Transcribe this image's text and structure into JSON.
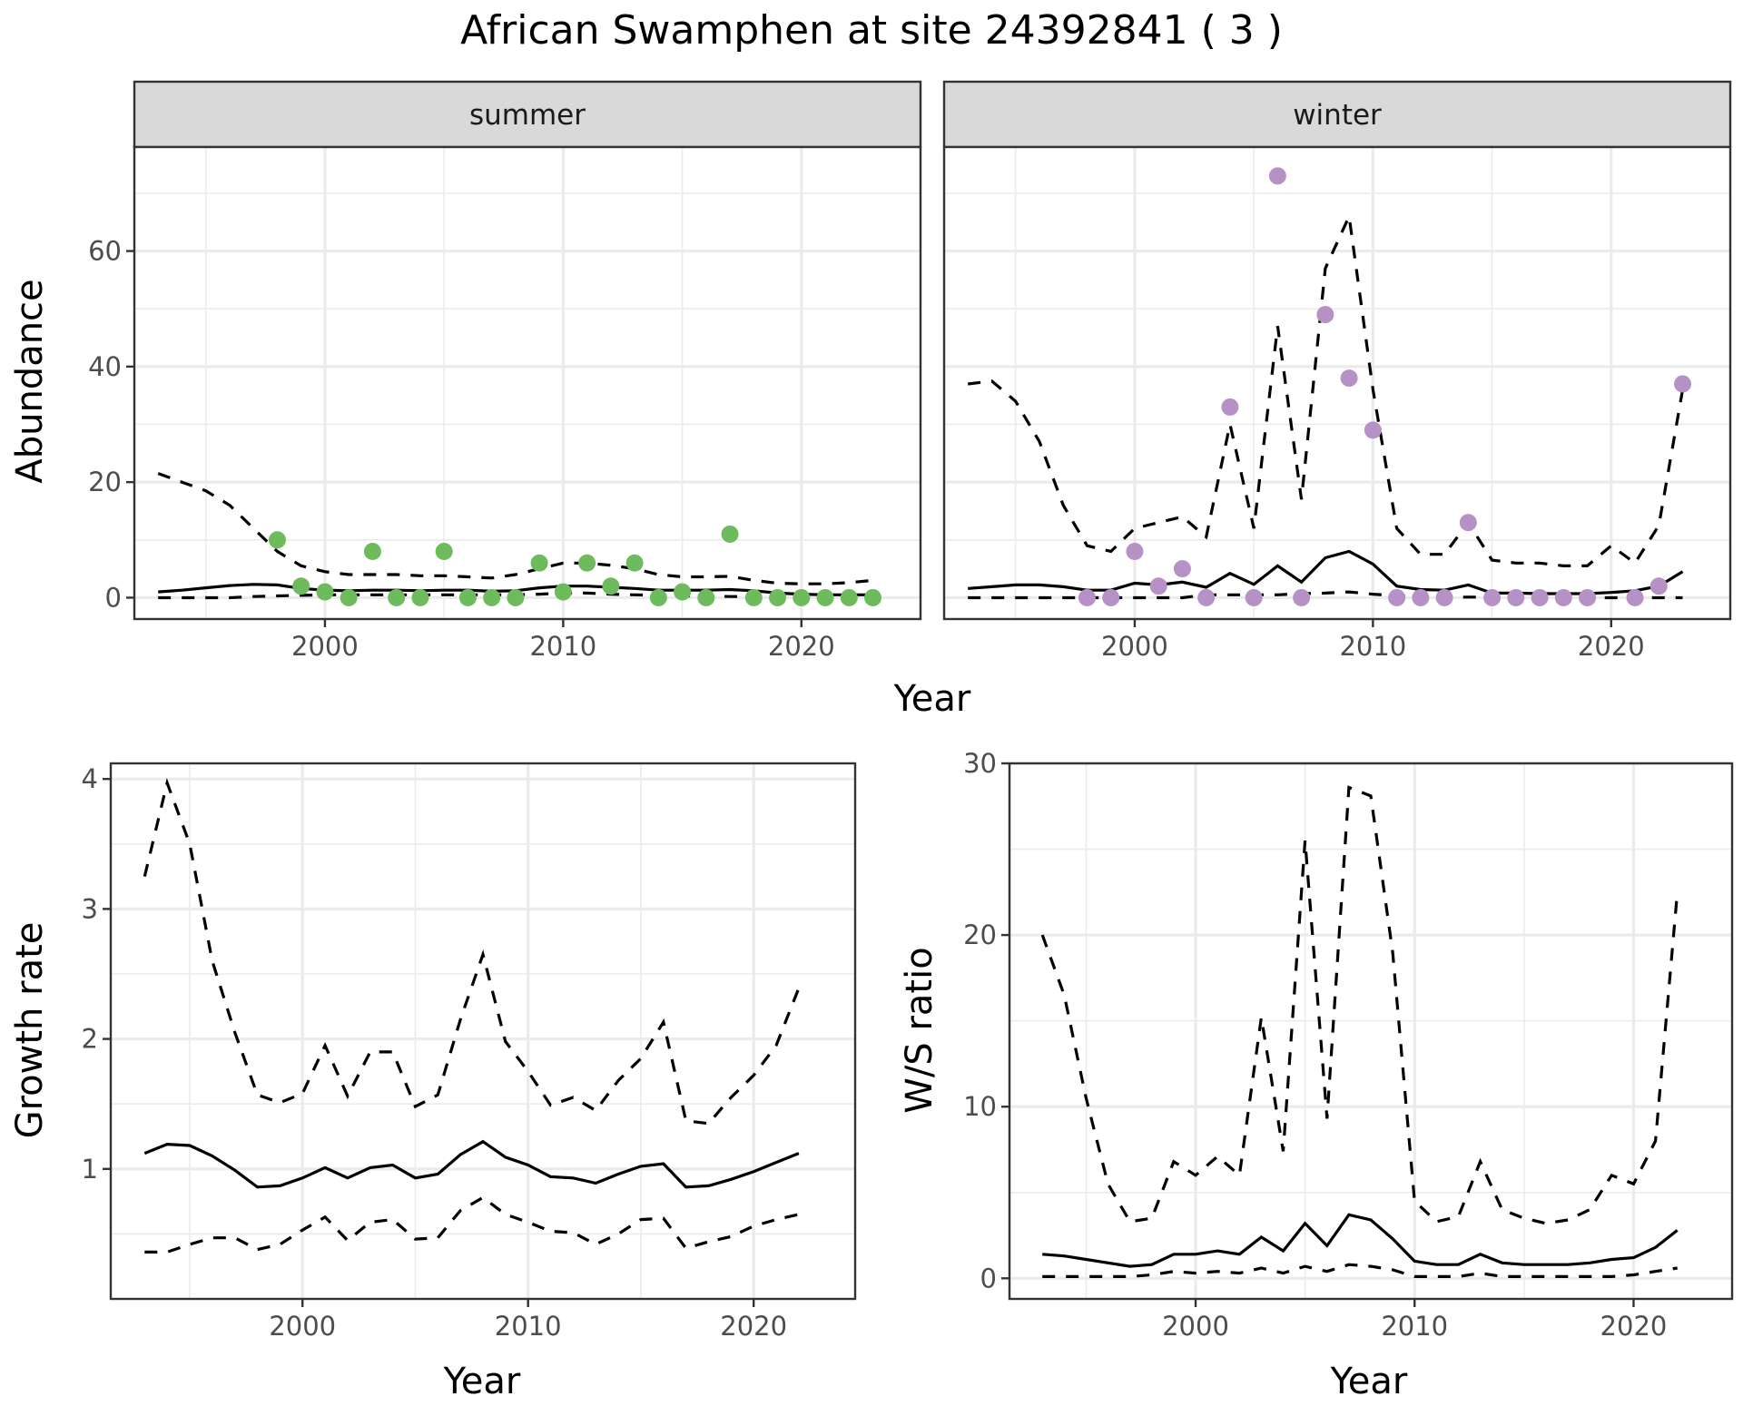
{
  "title": "African Swamphen at site 24392841 ( 3 )",
  "chart_data": [
    {
      "type": "line",
      "name": "abundance",
      "facets": [
        "summer",
        "winter"
      ],
      "xlabel": "Year",
      "ylabel": "Abundance",
      "xlim": [
        1992,
        2025
      ],
      "ylim": [
        -3.7,
        78
      ],
      "xticks": [
        2000,
        2010,
        2020
      ],
      "yticks": [
        0,
        20,
        40,
        60
      ],
      "grid": true,
      "panels": [
        {
          "facet": "summer",
          "point_color": "#6dbb5d",
          "years": [
            1993,
            1994,
            1995,
            1996,
            1997,
            1998,
            1999,
            2000,
            2001,
            2002,
            2003,
            2004,
            2005,
            2006,
            2007,
            2008,
            2009,
            2010,
            2011,
            2012,
            2013,
            2014,
            2015,
            2016,
            2017,
            2018,
            2019,
            2020,
            2021,
            2022,
            2023
          ],
          "mean": [
            1.0,
            1.3,
            1.7,
            2.1,
            2.3,
            2.2,
            1.6,
            1.3,
            1.2,
            1.3,
            1.3,
            1.2,
            1.3,
            1.3,
            1.1,
            1.2,
            1.7,
            2.0,
            2.0,
            1.8,
            1.6,
            1.3,
            1.3,
            1.3,
            1.4,
            1.2,
            0.8,
            0.6,
            0.5,
            0.5,
            0.5
          ],
          "upper": [
            21.5,
            20,
            18.5,
            16,
            12,
            8,
            5.5,
            4.5,
            4,
            4,
            4,
            3.8,
            3.8,
            3.6,
            3.4,
            4,
            5,
            6,
            6,
            5.6,
            5,
            4,
            3.6,
            3.6,
            3.7,
            3,
            2.5,
            2.4,
            2.4,
            2.6,
            3
          ],
          "lower": [
            0,
            0,
            0,
            0,
            0.2,
            0.3,
            0.4,
            0.5,
            0.5,
            0.5,
            0.5,
            0.5,
            0.5,
            0.5,
            0.5,
            0.5,
            0.6,
            0.8,
            0.8,
            0.6,
            0.5,
            0.4,
            0.3,
            0.3,
            0.2,
            0.2,
            0.1,
            0.1,
            0.1,
            0.1,
            0.1
          ],
          "points": {
            "years": [
              1998,
              1999,
              2000,
              2001,
              2002,
              2003,
              2004,
              2005,
              2006,
              2007,
              2008,
              2009,
              2010,
              2011,
              2012,
              2013,
              2014,
              2015,
              2016,
              2017,
              2018,
              2019,
              2020,
              2021,
              2022,
              2023
            ],
            "values": [
              10,
              2,
              1,
              0,
              8,
              0,
              0,
              8,
              0,
              0,
              0,
              6,
              1,
              6,
              2,
              6,
              0,
              1,
              0,
              11,
              0,
              0,
              0,
              0,
              0,
              0
            ]
          }
        },
        {
          "facet": "winter",
          "point_color": "#b591c6",
          "years": [
            1993,
            1994,
            1995,
            1996,
            1997,
            1998,
            1999,
            2000,
            2001,
            2002,
            2003,
            2004,
            2005,
            2006,
            2007,
            2008,
            2009,
            2010,
            2011,
            2012,
            2013,
            2014,
            2015,
            2016,
            2017,
            2018,
            2019,
            2020,
            2021,
            2022,
            2023
          ],
          "mean": [
            1.6,
            1.9,
            2.2,
            2.2,
            1.9,
            1.3,
            1.3,
            2.5,
            2.2,
            2.7,
            1.8,
            4.2,
            2.3,
            5.5,
            2.7,
            6.9,
            8.0,
            5.8,
            2.0,
            1.4,
            1.3,
            2.2,
            0.8,
            0.8,
            0.7,
            0.7,
            0.7,
            0.9,
            1.2,
            2.0,
            4.5
          ],
          "upper": [
            37,
            37.5,
            34,
            27,
            16,
            9,
            8,
            12,
            13,
            14,
            10.5,
            30,
            12,
            47,
            17,
            57,
            66,
            36,
            12,
            7.5,
            7.5,
            13,
            6.5,
            6,
            6,
            5.5,
            5.5,
            9,
            6,
            12.5,
            36
          ],
          "lower": [
            0,
            0,
            0,
            0,
            0,
            0,
            0,
            0,
            0,
            0,
            0.5,
            0.5,
            0.5,
            0.5,
            0.7,
            0.8,
            1.0,
            0.6,
            0.3,
            0.2,
            0.1,
            0.1,
            0.1,
            0,
            0,
            0,
            0,
            0,
            0,
            0,
            0
          ],
          "points": {
            "years": [
              1998,
              1999,
              2000,
              2001,
              2002,
              2003,
              2004,
              2005,
              2006,
              2007,
              2008,
              2009,
              2010,
              2011,
              2012,
              2013,
              2014,
              2015,
              2016,
              2017,
              2018,
              2019,
              2021,
              2022,
              2023
            ],
            "values": [
              0,
              0,
              8,
              2,
              5,
              0,
              33,
              0,
              73,
              0,
              49,
              38,
              29,
              0,
              0,
              0,
              13,
              0,
              0,
              0,
              0,
              0,
              0,
              2,
              37
            ]
          }
        }
      ]
    },
    {
      "type": "line",
      "name": "growth-rate",
      "xlabel": "Year",
      "ylabel": "Growth rate",
      "xlim": [
        1991.5,
        2024.5
      ],
      "ylim": [
        0.0,
        4.12
      ],
      "xticks": [
        2000,
        2010,
        2020
      ],
      "yticks": [
        1,
        2,
        3,
        4
      ],
      "grid": true,
      "years": [
        1993,
        1994,
        1995,
        1996,
        1997,
        1998,
        1999,
        2000,
        2001,
        2002,
        2003,
        2004,
        2005,
        2006,
        2007,
        2008,
        2009,
        2010,
        2011,
        2012,
        2013,
        2014,
        2015,
        2016,
        2017,
        2018,
        2019,
        2020,
        2021,
        2022
      ],
      "mean": [
        1.12,
        1.19,
        1.18,
        1.1,
        0.99,
        0.86,
        0.87,
        0.93,
        1.01,
        0.93,
        1.01,
        1.03,
        0.93,
        0.96,
        1.11,
        1.21,
        1.09,
        1.03,
        0.94,
        0.93,
        0.89,
        0.96,
        1.02,
        1.04,
        0.86,
        0.87,
        0.92,
        0.98,
        1.05,
        1.12
      ],
      "upper": [
        3.25,
        3.97,
        3.5,
        2.6,
        2.05,
        1.57,
        1.51,
        1.58,
        1.95,
        1.56,
        1.9,
        1.9,
        1.48,
        1.57,
        2.15,
        2.65,
        1.98,
        1.75,
        1.49,
        1.55,
        1.45,
        1.68,
        1.85,
        2.13,
        1.37,
        1.35,
        1.55,
        1.72,
        1.95,
        2.39
      ],
      "lower": [
        0.36,
        0.36,
        0.42,
        0.47,
        0.47,
        0.38,
        0.42,
        0.53,
        0.63,
        0.45,
        0.59,
        0.61,
        0.46,
        0.47,
        0.68,
        0.78,
        0.65,
        0.59,
        0.52,
        0.51,
        0.42,
        0.5,
        0.61,
        0.62,
        0.39,
        0.44,
        0.48,
        0.56,
        0.61,
        0.65
      ]
    },
    {
      "type": "line",
      "name": "ws-ratio",
      "xlabel": "Year",
      "ylabel": "W/S ratio",
      "xlim": [
        1991.5,
        2024.5
      ],
      "ylim": [
        -1.2,
        30
      ],
      "xticks": [
        2000,
        2010,
        2020
      ],
      "yticks": [
        0,
        10,
        20,
        30
      ],
      "grid": true,
      "years": [
        1993,
        1994,
        1995,
        1996,
        1997,
        1998,
        1999,
        2000,
        2001,
        2002,
        2003,
        2004,
        2005,
        2006,
        2007,
        2008,
        2009,
        2010,
        2011,
        2012,
        2013,
        2014,
        2015,
        2016,
        2017,
        2018,
        2019,
        2020,
        2021,
        2022
      ],
      "mean": [
        1.4,
        1.3,
        1.1,
        0.9,
        0.7,
        0.8,
        1.4,
        1.4,
        1.6,
        1.4,
        2.4,
        1.6,
        3.2,
        1.9,
        3.7,
        3.4,
        2.3,
        1.0,
        0.8,
        0.8,
        1.4,
        0.9,
        0.8,
        0.8,
        0.8,
        0.9,
        1.1,
        1.2,
        1.8,
        2.8
      ],
      "upper": [
        20,
        16.5,
        10.5,
        5.5,
        3.3,
        3.5,
        6.8,
        6,
        7.1,
        6,
        15.2,
        7.4,
        25.5,
        9.3,
        28.6,
        28.1,
        19,
        4.5,
        3.3,
        3.6,
        6.8,
        4,
        3.5,
        3.2,
        3.4,
        4,
        6,
        5.5,
        8,
        22.5
      ],
      "lower": [
        0.1,
        0.1,
        0.1,
        0.1,
        0.1,
        0.2,
        0.4,
        0.3,
        0.4,
        0.3,
        0.6,
        0.3,
        0.7,
        0.4,
        0.8,
        0.7,
        0.5,
        0.1,
        0.1,
        0.1,
        0.3,
        0.1,
        0.1,
        0.1,
        0.1,
        0.1,
        0.1,
        0.2,
        0.4,
        0.6
      ]
    }
  ],
  "legend": {
    "solid_line": "mean",
    "dashed_lines": "confidence bounds"
  }
}
